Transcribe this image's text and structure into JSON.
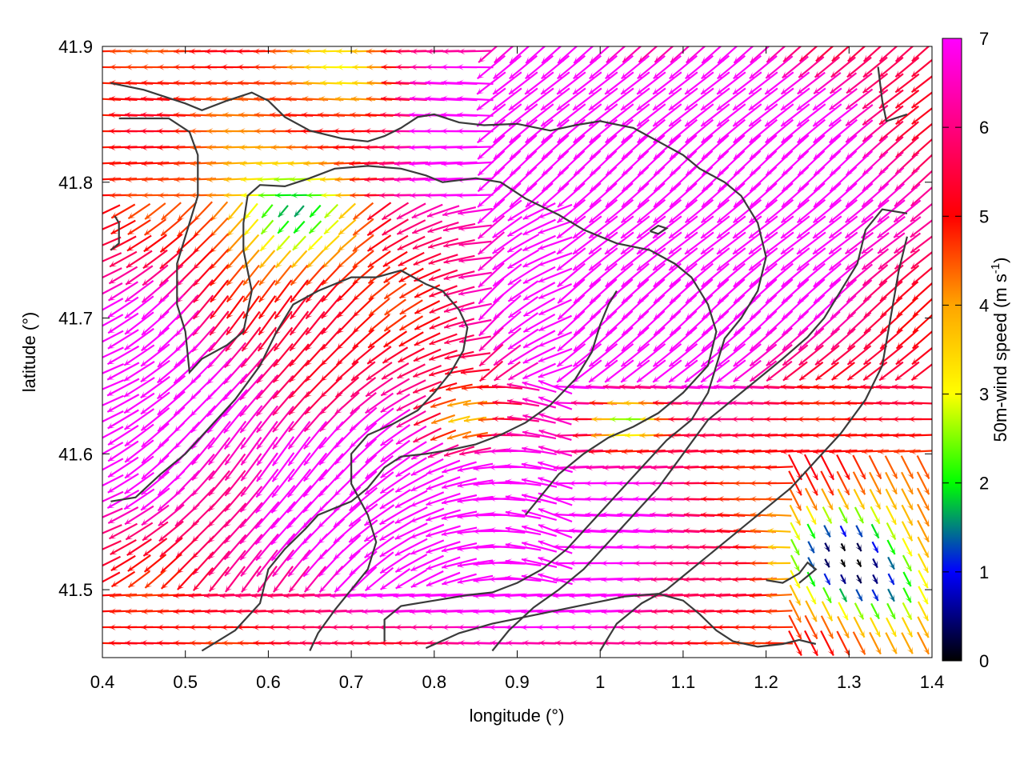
{
  "chart_data": {
    "type": "quiver",
    "title": "",
    "xlabel": "longitude (°)",
    "ylabel": "latitude (°)",
    "xlim": [
      0.4,
      1.4
    ],
    "ylim": [
      41.45,
      41.9
    ],
    "xticks": [
      "0.4",
      "0.5",
      "0.6",
      "0.7",
      "0.8",
      "0.9",
      "1",
      "1.1",
      "1.2",
      "1.3",
      "1.4"
    ],
    "yticks": [
      "41.5",
      "41.6",
      "41.7",
      "41.8",
      "41.9"
    ],
    "colorbar": {
      "label_prefix": "50m-wind speed (m s",
      "label_exponent": "-1",
      "label_suffix": ")",
      "range": [
        0,
        7
      ],
      "ticks": [
        "0",
        "1",
        "2",
        "3",
        "4",
        "5",
        "6",
        "7"
      ],
      "colors": [
        "#000000",
        "#0000ff",
        "#00ff00",
        "#ffff00",
        "#ffa500",
        "#ff0000",
        "#ff00ff"
      ]
    },
    "contour_lines": [
      {
        "points": [
          [
            0.41,
            41.873
          ],
          [
            0.45,
            41.868
          ],
          [
            0.5,
            41.858
          ],
          [
            0.52,
            41.853
          ],
          [
            0.55,
            41.86
          ],
          [
            0.58,
            41.866
          ],
          [
            0.6,
            41.86
          ],
          [
            0.62,
            41.848
          ],
          [
            0.65,
            41.838
          ],
          [
            0.69,
            41.832
          ],
          [
            0.72,
            41.83
          ],
          [
            0.74,
            41.834
          ],
          [
            0.76,
            41.84
          ],
          [
            0.78,
            41.848
          ],
          [
            0.8,
            41.85
          ],
          [
            0.83,
            41.844
          ],
          [
            0.86,
            41.842
          ],
          [
            0.9,
            41.843
          ],
          [
            0.94,
            41.838
          ],
          [
            0.97,
            41.842
          ],
          [
            1.0,
            41.845
          ],
          [
            1.04,
            41.84
          ],
          [
            1.07,
            41.83
          ],
          [
            1.1,
            41.82
          ],
          [
            1.12,
            41.81
          ],
          [
            1.15,
            41.8
          ],
          [
            1.17,
            41.79
          ],
          [
            1.19,
            41.77
          ],
          [
            1.2,
            41.745
          ],
          [
            1.19,
            41.72
          ],
          [
            1.17,
            41.7
          ],
          [
            1.15,
            41.685
          ],
          [
            1.14,
            41.665
          ],
          [
            1.13,
            41.645
          ],
          [
            1.11,
            41.625
          ],
          [
            1.08,
            41.61
          ],
          [
            1.05,
            41.59
          ],
          [
            1.02,
            41.57
          ],
          [
            0.99,
            41.55
          ],
          [
            0.96,
            41.53
          ],
          [
            0.93,
            41.515
          ],
          [
            0.9,
            41.505
          ],
          [
            0.87,
            41.498
          ],
          [
            0.84,
            41.496
          ],
          [
            0.8,
            41.492
          ],
          [
            0.76,
            41.488
          ],
          [
            0.74,
            41.478
          ],
          [
            0.74,
            41.462
          ]
        ]
      },
      {
        "points": [
          [
            0.415,
            41.775
          ],
          [
            0.42,
            41.77
          ],
          [
            0.42,
            41.755
          ],
          [
            0.41,
            41.75
          ]
        ]
      },
      {
        "points": [
          [
            0.42,
            41.847
          ],
          [
            0.48,
            41.847
          ],
          [
            0.505,
            41.837
          ],
          [
            0.515,
            41.82
          ],
          [
            0.515,
            41.79
          ],
          [
            0.5,
            41.76
          ],
          [
            0.49,
            41.74
          ],
          [
            0.49,
            41.71
          ],
          [
            0.5,
            41.69
          ],
          [
            0.505,
            41.66
          ],
          [
            0.52,
            41.67
          ],
          [
            0.55,
            41.68
          ],
          [
            0.57,
            41.69
          ],
          [
            0.58,
            41.72
          ],
          [
            0.57,
            41.75
          ],
          [
            0.57,
            41.77
          ],
          [
            0.575,
            41.79
          ],
          [
            0.59,
            41.798
          ],
          [
            0.62,
            41.797
          ],
          [
            0.65,
            41.803
          ],
          [
            0.68,
            41.81
          ],
          [
            0.72,
            41.812
          ],
          [
            0.76,
            41.81
          ],
          [
            0.79,
            41.805
          ],
          [
            0.81,
            41.8
          ],
          [
            0.85,
            41.803
          ],
          [
            0.88,
            41.8
          ],
          [
            0.91,
            41.788
          ],
          [
            0.95,
            41.776
          ],
          [
            0.98,
            41.765
          ],
          [
            1.02,
            41.755
          ],
          [
            1.06,
            41.75
          ],
          [
            1.09,
            41.74
          ],
          [
            1.11,
            41.73
          ],
          [
            1.13,
            41.71
          ],
          [
            1.14,
            41.69
          ],
          [
            1.13,
            41.665
          ],
          [
            1.1,
            41.645
          ],
          [
            1.07,
            41.63
          ],
          [
            1.04,
            41.62
          ],
          [
            1.01,
            41.612
          ],
          [
            0.98,
            41.6
          ],
          [
            0.95,
            41.585
          ],
          [
            0.93,
            41.57
          ],
          [
            0.91,
            41.555
          ]
        ]
      },
      {
        "points": [
          [
            0.41,
            41.565
          ],
          [
            0.44,
            41.568
          ],
          [
            0.47,
            41.585
          ],
          [
            0.5,
            41.6
          ],
          [
            0.53,
            41.62
          ],
          [
            0.56,
            41.64
          ],
          [
            0.59,
            41.665
          ],
          [
            0.61,
            41.69
          ],
          [
            0.63,
            41.71
          ],
          [
            0.66,
            41.72
          ],
          [
            0.7,
            41.73
          ],
          [
            0.73,
            41.73
          ],
          [
            0.76,
            41.735
          ],
          [
            0.79,
            41.725
          ],
          [
            0.81,
            41.72
          ],
          [
            0.83,
            41.706
          ],
          [
            0.84,
            41.693
          ],
          [
            0.835,
            41.676
          ],
          [
            0.82,
            41.66
          ],
          [
            0.8,
            41.645
          ],
          [
            0.78,
            41.632
          ],
          [
            0.75,
            41.622
          ],
          [
            0.72,
            41.614
          ],
          [
            0.7,
            41.6
          ],
          [
            0.7,
            41.578
          ],
          [
            0.72,
            41.555
          ],
          [
            0.73,
            41.535
          ],
          [
            0.72,
            41.515
          ],
          [
            0.7,
            41.5
          ],
          [
            0.68,
            41.485
          ],
          [
            0.66,
            41.468
          ],
          [
            0.65,
            41.455
          ]
        ]
      },
      {
        "points": [
          [
            0.52,
            41.455
          ],
          [
            0.56,
            41.47
          ],
          [
            0.59,
            41.49
          ],
          [
            0.6,
            41.515
          ],
          [
            0.62,
            41.53
          ],
          [
            0.645,
            41.545
          ],
          [
            0.66,
            41.555
          ],
          [
            0.68,
            41.56
          ],
          [
            0.7,
            41.565
          ],
          [
            0.72,
            41.575
          ],
          [
            0.74,
            41.59
          ],
          [
            0.76,
            41.598
          ],
          [
            0.79,
            41.6
          ],
          [
            0.82,
            41.603
          ],
          [
            0.85,
            41.607
          ],
          [
            0.88,
            41.614
          ],
          [
            0.91,
            41.623
          ],
          [
            0.94,
            41.636
          ],
          [
            0.97,
            41.655
          ],
          [
            0.99,
            41.675
          ],
          [
            1.0,
            41.695
          ],
          [
            1.01,
            41.71
          ],
          [
            1.02,
            41.72
          ]
        ]
      },
      {
        "points": [
          [
            0.87,
            41.455
          ],
          [
            0.89,
            41.47
          ],
          [
            0.92,
            41.487
          ],
          [
            0.95,
            41.5
          ],
          [
            0.98,
            41.515
          ],
          [
            1.01,
            41.535
          ],
          [
            1.04,
            41.555
          ],
          [
            1.07,
            41.575
          ],
          [
            1.1,
            41.6
          ],
          [
            1.13,
            41.625
          ],
          [
            1.16,
            41.64
          ],
          [
            1.19,
            41.655
          ],
          [
            1.22,
            41.67
          ],
          [
            1.25,
            41.686
          ],
          [
            1.27,
            41.7
          ],
          [
            1.29,
            41.72
          ],
          [
            1.31,
            41.74
          ],
          [
            1.32,
            41.765
          ],
          [
            1.34,
            41.78
          ],
          [
            1.37,
            41.777
          ]
        ]
      },
      {
        "points": [
          [
            1.0,
            41.455
          ],
          [
            1.02,
            41.475
          ],
          [
            1.05,
            41.49
          ],
          [
            1.08,
            41.5
          ],
          [
            1.11,
            41.515
          ],
          [
            1.14,
            41.53
          ],
          [
            1.17,
            41.545
          ],
          [
            1.2,
            41.56
          ],
          [
            1.23,
            41.575
          ],
          [
            1.26,
            41.595
          ],
          [
            1.29,
            41.615
          ],
          [
            1.32,
            41.64
          ],
          [
            1.34,
            41.665
          ],
          [
            1.35,
            41.7
          ],
          [
            1.36,
            41.735
          ],
          [
            1.37,
            41.76
          ]
        ]
      },
      {
        "points": [
          [
            0.79,
            41.457
          ],
          [
            0.83,
            41.468
          ],
          [
            0.87,
            41.475
          ],
          [
            0.91,
            41.48
          ],
          [
            0.95,
            41.485
          ],
          [
            0.99,
            41.49
          ],
          [
            1.03,
            41.495
          ],
          [
            1.07,
            41.497
          ],
          [
            1.1,
            41.492
          ],
          [
            1.12,
            41.482
          ],
          [
            1.14,
            41.47
          ],
          [
            1.16,
            41.462
          ],
          [
            1.19,
            41.458
          ],
          [
            1.22,
            41.46
          ],
          [
            1.24,
            41.463
          ],
          [
            1.26,
            41.46
          ]
        ]
      },
      {
        "points": [
          [
            1.2,
            41.507
          ],
          [
            1.22,
            41.505
          ],
          [
            1.24,
            41.512
          ],
          [
            1.25,
            41.52
          ],
          [
            1.26,
            41.515
          ],
          [
            1.24,
            41.505
          ]
        ]
      },
      {
        "points": [
          [
            1.06,
            41.764
          ],
          [
            1.07,
            41.768
          ],
          [
            1.08,
            41.766
          ],
          [
            1.07,
            41.762
          ],
          [
            1.06,
            41.764
          ]
        ]
      },
      {
        "points": [
          [
            1.335,
            41.885
          ],
          [
            1.34,
            41.86
          ],
          [
            1.345,
            41.845
          ],
          [
            1.37,
            41.85
          ]
        ]
      }
    ]
  }
}
